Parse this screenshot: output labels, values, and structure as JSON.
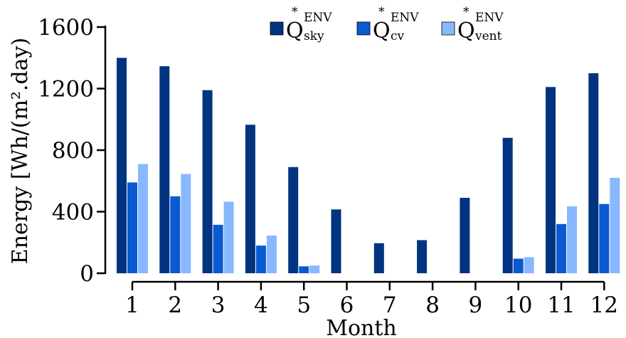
{
  "chart_data": {
    "type": "bar",
    "categories": [
      "1",
      "2",
      "3",
      "4",
      "5",
      "6",
      "7",
      "8",
      "9",
      "10",
      "11",
      "12"
    ],
    "series": [
      {
        "legend_symbol": "Q",
        "legend_mark": "*",
        "legend_sup": "ENV",
        "legend_sub": "sky",
        "color": "#003380",
        "values": [
          1400,
          1345,
          1190,
          965,
          690,
          415,
          195,
          215,
          490,
          880,
          1210,
          1300
        ]
      },
      {
        "legend_symbol": "Q",
        "legend_mark": "*",
        "legend_sup": "ENV",
        "legend_sub": "cv",
        "color": "#0A5AD2",
        "values": [
          590,
          500,
          315,
          180,
          45,
          0,
          0,
          0,
          0,
          95,
          320,
          450
        ]
      },
      {
        "legend_symbol": "Q",
        "legend_mark": "*",
        "legend_sup": "ENV",
        "legend_sub": "vent",
        "color": "#88B8FF",
        "values": [
          710,
          645,
          465,
          245,
          50,
          0,
          0,
          0,
          0,
          105,
          435,
          620
        ]
      }
    ],
    "ylabel": "Energy [Wh/(m².day)",
    "xlabel": "Month",
    "ylim": [
      0,
      1600
    ],
    "yticks": [
      "0",
      "400",
      "800",
      "1200",
      "1600"
    ],
    "yticks_values": [
      0,
      400,
      800,
      1200,
      1600
    ],
    "legend_position": "top-right",
    "grid": false
  }
}
